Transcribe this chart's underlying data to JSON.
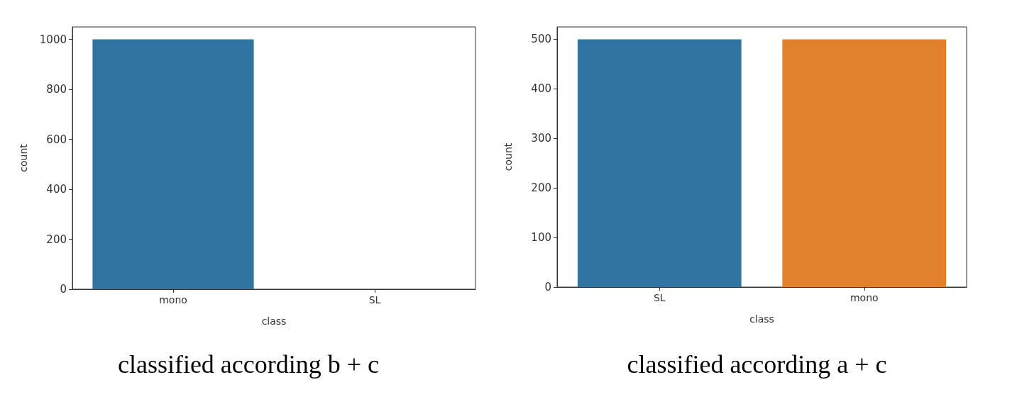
{
  "chart_data": [
    {
      "type": "bar",
      "title": "classified according b + c",
      "xlabel": "class",
      "ylabel": "count",
      "categories": [
        "mono",
        "SL"
      ],
      "values": [
        1000,
        0
      ],
      "colors": [
        "#3274a1",
        "#e1812c"
      ],
      "ylim": [
        0,
        1050
      ],
      "yticks": [
        0,
        200,
        400,
        600,
        800,
        1000
      ]
    },
    {
      "type": "bar",
      "title": "classified according a + c",
      "xlabel": "class",
      "ylabel": "count",
      "categories": [
        "SL",
        "mono"
      ],
      "values": [
        500,
        500
      ],
      "colors": [
        "#3274a1",
        "#e1812c"
      ],
      "ylim": [
        0,
        525
      ],
      "yticks": [
        0,
        100,
        200,
        300,
        400,
        500
      ]
    }
  ]
}
